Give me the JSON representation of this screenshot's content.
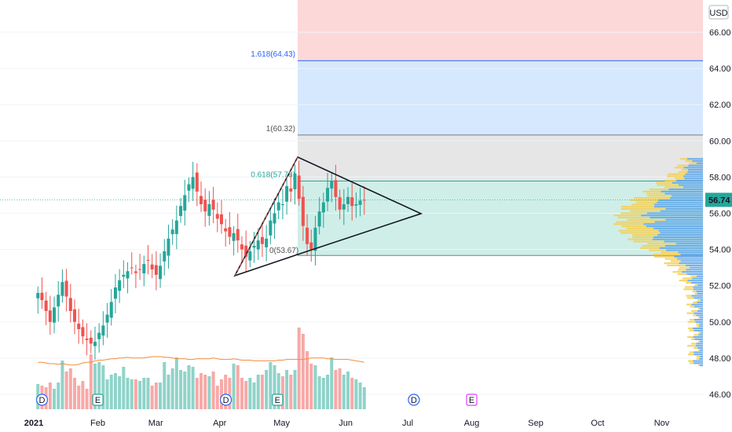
{
  "currency": "USD",
  "price_label": "56.74",
  "colors": {
    "up": "#26a69a",
    "down": "#ef5350",
    "ma": "#f48c3a",
    "accent": "#2962ff",
    "fib_top": "#fcd8d8",
    "fib_mid": "#d6e8fd",
    "fib_grey": "#e6e6e6",
    "fib_green": "#cfeee8"
  },
  "fib_labels": {
    "l1618": "1.618(64.43)",
    "l1": "1(60.32)",
    "l0618": "0.618(57.78)",
    "l0": "0(53.67)"
  },
  "events": [
    {
      "type": "D",
      "date": "2021-01-05"
    },
    {
      "type": "E",
      "date": "2021-02-01"
    },
    {
      "type": "D",
      "date": "2021-04-04"
    },
    {
      "type": "E",
      "date": "2021-04-29"
    },
    {
      "type": "D",
      "date": "2021-07-04"
    },
    {
      "type": "E",
      "date": "2021-08-01"
    }
  ],
  "chart_data": {
    "type": "candlestick",
    "y_ticks": [
      "66.00",
      "64.00",
      "62.00",
      "60.00",
      "58.00",
      "56.00",
      "54.00",
      "52.00",
      "50.00",
      "48.00",
      "46.00"
    ],
    "x_ticks": [
      "2021",
      "Feb",
      "Mar",
      "Apr",
      "May",
      "Jun",
      "Jul",
      "Aug",
      "Sep",
      "Oct",
      "Nov"
    ],
    "ylim": [
      45.5,
      67.5
    ],
    "last_price": 56.74,
    "fib_levels": [
      {
        "ratio": 1.618,
        "value": 64.43
      },
      {
        "ratio": 1,
        "value": 60.32
      },
      {
        "ratio": 0.618,
        "value": 57.78
      },
      {
        "ratio": 0,
        "value": 53.67
      }
    ],
    "close_path": [
      51.6,
      51.2,
      50.6,
      50.0,
      50.8,
      51.5,
      52.2,
      51.4,
      50.6,
      50.0,
      49.6,
      49.2,
      49.0,
      48.8,
      48.9,
      49.4,
      49.8,
      50.4,
      51.1,
      51.9,
      52.3,
      52.6,
      52.8,
      53.0,
      52.7,
      52.9,
      53.2,
      53.4,
      52.9,
      52.6,
      53.1,
      53.9,
      54.6,
      55.1,
      55.6,
      56.4,
      57.0,
      57.6,
      58.0,
      57.2,
      56.5,
      56.1,
      56.5,
      56.2,
      55.7,
      55.4,
      55.0,
      54.7,
      54.9,
      54.5,
      54.0,
      53.6,
      53.9,
      54.2,
      54.5,
      54.3,
      54.6,
      55.6,
      56.0,
      56.6,
      56.5,
      57.5,
      57.2,
      58.2,
      56.8,
      55.3,
      54.3,
      54.0,
      55.2,
      56.1,
      56.6,
      57.4,
      57.8,
      56.9,
      56.2,
      56.5,
      56.9,
      56.4,
      56.5,
      56.7,
      56.74
    ],
    "volume_heights": [
      32,
      30,
      28,
      34,
      26,
      34,
      62,
      48,
      52,
      40,
      30,
      36,
      26,
      70,
      58,
      60,
      56,
      38,
      44,
      46,
      42,
      54,
      40,
      38,
      38,
      36,
      40,
      40,
      30,
      34,
      34,
      60,
      44,
      52,
      66,
      50,
      48,
      56,
      54,
      40,
      46,
      44,
      42,
      48,
      30,
      38,
      44,
      40,
      58,
      56,
      40,
      36,
      40,
      34,
      44,
      44,
      50,
      60,
      56,
      46,
      42,
      50,
      44,
      50,
      104,
      96,
      74,
      58,
      56,
      42,
      40,
      44,
      66,
      50,
      52,
      44,
      48,
      40,
      38,
      34,
      28
    ],
    "ma_heights": [
      22,
      22,
      21,
      20,
      20,
      19,
      20,
      19,
      18,
      18,
      19,
      21,
      22,
      22,
      24,
      25,
      25,
      26,
      27,
      27,
      28,
      28,
      29,
      28,
      28,
      28,
      28,
      29,
      30,
      30,
      30,
      29,
      29,
      28,
      27,
      27,
      27,
      26,
      26,
      27,
      27,
      27,
      27,
      28,
      27,
      26,
      26,
      26,
      27,
      26,
      25,
      25,
      25,
      24,
      24,
      24,
      24,
      24,
      24,
      25,
      25,
      26,
      26,
      26,
      26,
      26,
      27,
      28,
      28,
      28,
      28,
      27,
      27,
      26,
      26,
      26,
      26,
      25,
      24,
      23,
      22
    ]
  }
}
